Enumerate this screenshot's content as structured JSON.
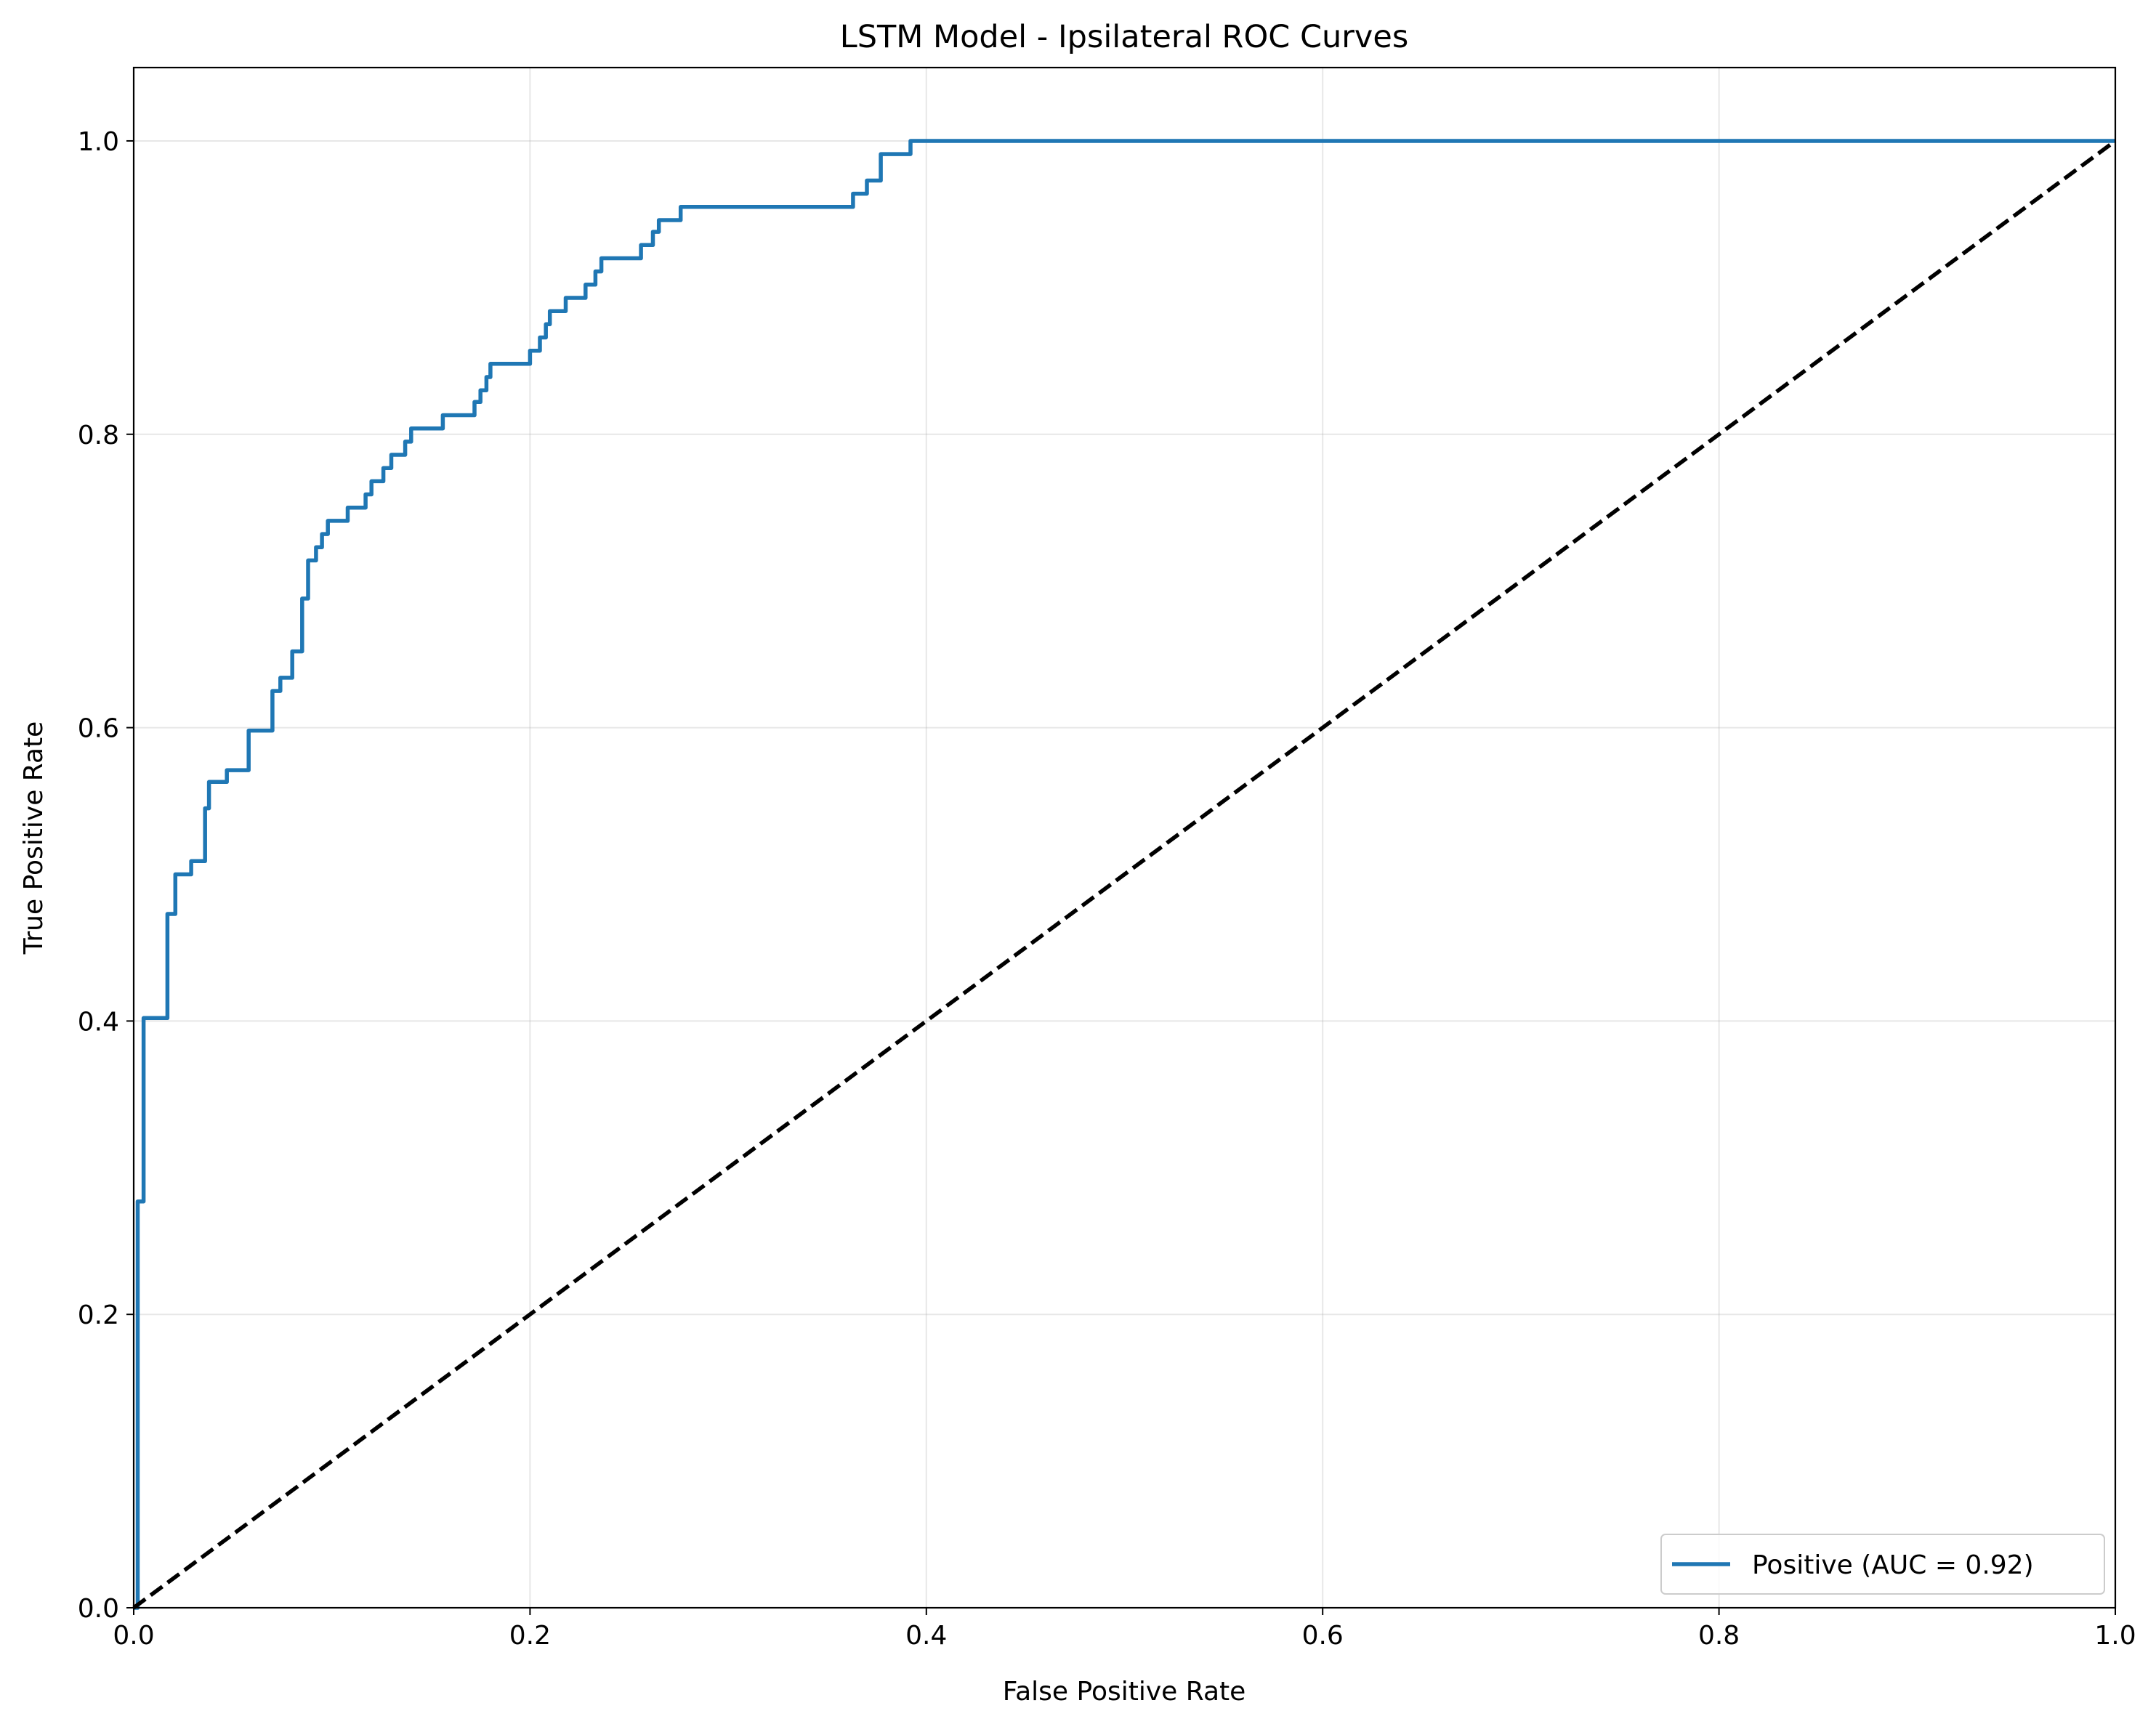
{
  "chart_data": {
    "type": "line",
    "title": "LSTM Model - Ipsilateral ROC Curves",
    "xlabel": "False Positive Rate",
    "ylabel": "True Positive Rate",
    "xlim": [
      0.0,
      1.0
    ],
    "ylim": [
      0.0,
      1.05
    ],
    "xticks": [
      0.0,
      0.2,
      0.4,
      0.6,
      0.8,
      1.0
    ],
    "yticks": [
      0.0,
      0.2,
      0.4,
      0.6,
      0.8,
      1.0
    ],
    "xtick_labels": [
      "0.0",
      "0.2",
      "0.4",
      "0.6",
      "0.8",
      "1.0"
    ],
    "ytick_labels": [
      "0.0",
      "0.2",
      "0.4",
      "0.6",
      "0.8",
      "1.0"
    ],
    "grid": true,
    "legend_position": "lower-right",
    "series": [
      {
        "name": "Positive (AUC = 0.92)",
        "color": "#1f77b4",
        "style": "solid",
        "x": [
          0.0,
          0.002,
          0.002,
          0.005,
          0.005,
          0.017,
          0.017,
          0.021,
          0.021,
          0.029,
          0.029,
          0.036,
          0.036,
          0.038,
          0.038,
          0.047,
          0.047,
          0.058,
          0.058,
          0.07,
          0.07,
          0.074,
          0.074,
          0.08,
          0.08,
          0.085,
          0.085,
          0.088,
          0.088,
          0.092,
          0.092,
          0.095,
          0.095,
          0.098,
          0.098,
          0.108,
          0.108,
          0.117,
          0.117,
          0.12,
          0.12,
          0.126,
          0.126,
          0.13,
          0.13,
          0.137,
          0.137,
          0.14,
          0.14,
          0.156,
          0.156,
          0.172,
          0.172,
          0.175,
          0.175,
          0.178,
          0.178,
          0.18,
          0.18,
          0.2,
          0.2,
          0.205,
          0.205,
          0.208,
          0.208,
          0.21,
          0.21,
          0.218,
          0.218,
          0.228,
          0.228,
          0.233,
          0.233,
          0.236,
          0.236,
          0.256,
          0.256,
          0.262,
          0.262,
          0.265,
          0.265,
          0.276,
          0.276,
          0.363,
          0.363,
          0.37,
          0.37,
          0.377,
          0.377,
          0.392,
          0.392,
          1.0
        ],
        "y": [
          0.0,
          0.0,
          0.277,
          0.277,
          0.402,
          0.402,
          0.473,
          0.473,
          0.5,
          0.5,
          0.509,
          0.509,
          0.545,
          0.545,
          0.563,
          0.563,
          0.571,
          0.571,
          0.598,
          0.598,
          0.625,
          0.625,
          0.634,
          0.634,
          0.652,
          0.652,
          0.688,
          0.688,
          0.714,
          0.714,
          0.723,
          0.723,
          0.732,
          0.732,
          0.741,
          0.741,
          0.75,
          0.75,
          0.759,
          0.759,
          0.768,
          0.768,
          0.777,
          0.777,
          0.786,
          0.786,
          0.795,
          0.795,
          0.804,
          0.804,
          0.813,
          0.813,
          0.822,
          0.822,
          0.83,
          0.83,
          0.839,
          0.839,
          0.848,
          0.848,
          0.857,
          0.857,
          0.866,
          0.866,
          0.875,
          0.875,
          0.884,
          0.884,
          0.893,
          0.893,
          0.902,
          0.902,
          0.911,
          0.911,
          0.92,
          0.92,
          0.929,
          0.929,
          0.938,
          0.938,
          0.946,
          0.946,
          0.955,
          0.955,
          0.964,
          0.964,
          0.973,
          0.973,
          0.991,
          0.991,
          1.0,
          1.0
        ]
      },
      {
        "name": "",
        "color": "#000000",
        "style": "dashed",
        "x": [
          0.0,
          1.0
        ],
        "y": [
          0.0,
          1.0
        ]
      }
    ]
  }
}
